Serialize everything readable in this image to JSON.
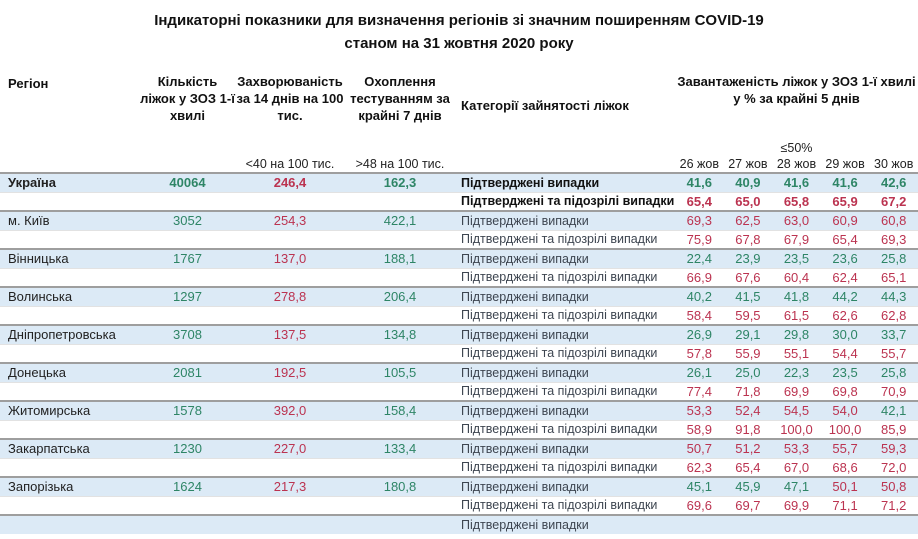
{
  "title": {
    "line1": "Індикаторні показники для визначення регіонів зі значним поширенням COVID-19",
    "line2": "станом на 31 жовтня 2020 року"
  },
  "header": {
    "region": "Регіон",
    "beds": "Кількість ліжок у ЗОЗ 1-ї хвилі",
    "incidence": "Захворюваність за 14 днів на 100 тис.",
    "testing": "Охоплення тестуванням за крайні 7 днів",
    "category": "Категорії зайнятості ліжок",
    "occupancy": "Завантаженість ліжок у ЗОЗ 1-ї хвилі у % за крайні 5 днів",
    "incidence_threshold": "<40 на 100 тис.",
    "testing_threshold": ">48 на 100 тис.",
    "occupancy_threshold": "≤50%",
    "dates": [
      "26 жов",
      "27 жов",
      "28 жов",
      "29 жов",
      "30 жов"
    ]
  },
  "category_labels": {
    "confirmed": "Підтверджені випадки",
    "confirmed_suspected": "Підтверджені та підозрілі випадки"
  },
  "colors": {
    "green": "#2e8566",
    "red": "#bb3350",
    "row_highlight": "#dceaf6"
  },
  "thresholds": {
    "incidence": 40,
    "testing": 48,
    "occupancy": 50
  },
  "regions": [
    {
      "name": "Україна",
      "bold": true,
      "beds": "40064",
      "incidence": "246,4",
      "testing": "162,3",
      "confirmed": [
        "41,6",
        "40,9",
        "41,6",
        "41,6",
        "42,6"
      ],
      "confirmed_suspected": [
        "65,4",
        "65,0",
        "65,8",
        "65,9",
        "67,2"
      ]
    },
    {
      "name": "м. Київ",
      "bold": false,
      "beds": "3052",
      "incidence": "254,3",
      "testing": "422,1",
      "confirmed": [
        "69,3",
        "62,5",
        "63,0",
        "60,9",
        "60,8"
      ],
      "confirmed_suspected": [
        "75,9",
        "67,8",
        "67,9",
        "65,4",
        "69,3"
      ]
    },
    {
      "name": "Вінницька",
      "bold": false,
      "beds": "1767",
      "incidence": "137,0",
      "testing": "188,1",
      "confirmed": [
        "22,4",
        "23,9",
        "23,5",
        "23,6",
        "25,8"
      ],
      "confirmed_suspected": [
        "66,9",
        "67,6",
        "60,4",
        "62,4",
        "65,1"
      ]
    },
    {
      "name": "Волинська",
      "bold": false,
      "beds": "1297",
      "incidence": "278,8",
      "testing": "206,4",
      "confirmed": [
        "40,2",
        "41,5",
        "41,8",
        "44,2",
        "44,3"
      ],
      "confirmed_suspected": [
        "58,4",
        "59,5",
        "61,5",
        "62,6",
        "62,8"
      ]
    },
    {
      "name": "Дніпропетровська",
      "bold": false,
      "beds": "3708",
      "incidence": "137,5",
      "testing": "134,8",
      "confirmed": [
        "26,9",
        "29,1",
        "29,8",
        "30,0",
        "33,7"
      ],
      "confirmed_suspected": [
        "57,8",
        "55,9",
        "55,1",
        "54,4",
        "55,7"
      ]
    },
    {
      "name": "Донецька",
      "bold": false,
      "beds": "2081",
      "incidence": "192,5",
      "testing": "105,5",
      "confirmed": [
        "26,1",
        "25,0",
        "22,3",
        "23,5",
        "25,8"
      ],
      "confirmed_suspected": [
        "77,4",
        "71,8",
        "69,9",
        "69,8",
        "70,9"
      ]
    },
    {
      "name": "Житомирська",
      "bold": false,
      "beds": "1578",
      "incidence": "392,0",
      "testing": "158,4",
      "confirmed": [
        "53,3",
        "52,4",
        "54,5",
        "54,0",
        "42,1"
      ],
      "confirmed_suspected": [
        "58,9",
        "91,8",
        "100,0",
        "100,0",
        "85,9"
      ]
    },
    {
      "name": "Закарпатська",
      "bold": false,
      "beds": "1230",
      "incidence": "227,0",
      "testing": "133,4",
      "confirmed": [
        "50,7",
        "51,2",
        "53,3",
        "55,7",
        "59,3"
      ],
      "confirmed_suspected": [
        "62,3",
        "65,4",
        "67,0",
        "68,6",
        "72,0"
      ]
    },
    {
      "name": "Запорізька",
      "bold": false,
      "beds": "1624",
      "incidence": "217,3",
      "testing": "180,8",
      "confirmed": [
        "45,1",
        "45,9",
        "47,1",
        "50,1",
        "50,8"
      ],
      "confirmed_suspected": [
        "69,6",
        "69,7",
        "69,9",
        "71,1",
        "71,2"
      ]
    }
  ]
}
